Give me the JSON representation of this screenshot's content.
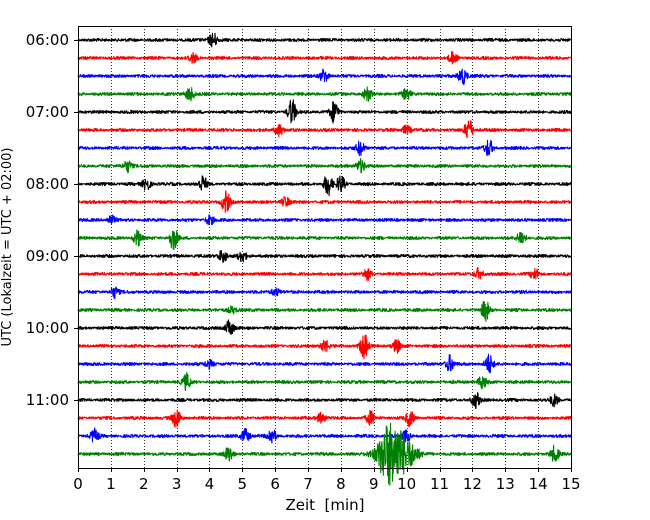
{
  "chart_data": {
    "type": "line",
    "title": "",
    "xlabel": "Zeit  [min]",
    "ylabel": "UTC (Lokalzeit = UTC + 02:00)",
    "xlim": [
      0,
      15
    ],
    "x_ticks": [
      0,
      1,
      2,
      3,
      4,
      5,
      6,
      7,
      8,
      9,
      10,
      11,
      12,
      13,
      14,
      15
    ],
    "x_tick_labels": [
      "0",
      "1",
      "2",
      "3",
      "4",
      "5",
      "6",
      "7",
      "8",
      "9",
      "10",
      "11",
      "12",
      "13",
      "14",
      "15"
    ],
    "y_tick_labels": [
      "06:00",
      "07:00",
      "08:00",
      "09:00",
      "10:00",
      "11:00"
    ],
    "y_tick_trace_index": [
      0,
      4,
      8,
      12,
      16,
      20
    ],
    "grid": "vertical dotted",
    "trace_interval_min": 15,
    "trace_colors": [
      "#000000",
      "#ff0000",
      "#0000ff",
      "#008000"
    ],
    "traces": [
      {
        "start": "06:00",
        "color": "#000000",
        "events": [
          [
            4.1,
            1.0
          ]
        ]
      },
      {
        "start": "06:15",
        "color": "#ff0000",
        "events": [
          [
            3.5,
            0.5
          ],
          [
            11.4,
            0.5
          ]
        ]
      },
      {
        "start": "06:30",
        "color": "#0000ff",
        "events": [
          [
            7.5,
            0.8
          ],
          [
            11.7,
            1.2
          ]
        ]
      },
      {
        "start": "06:45",
        "color": "#008000",
        "events": [
          [
            3.4,
            1.0
          ],
          [
            8.8,
            0.6
          ],
          [
            10.0,
            0.5
          ]
        ]
      },
      {
        "start": "07:00",
        "color": "#000000",
        "events": [
          [
            6.5,
            1.2
          ],
          [
            7.8,
            1.0
          ]
        ]
      },
      {
        "start": "07:15",
        "color": "#ff0000",
        "events": [
          [
            6.1,
            0.7
          ],
          [
            11.9,
            1.3
          ],
          [
            10.0,
            0.6
          ]
        ]
      },
      {
        "start": "07:30",
        "color": "#0000ff",
        "events": [
          [
            8.6,
            0.8
          ],
          [
            12.5,
            0.8
          ]
        ]
      },
      {
        "start": "07:45",
        "color": "#008000",
        "events": [
          [
            1.5,
            0.8
          ],
          [
            8.6,
            0.9
          ]
        ]
      },
      {
        "start": "08:00",
        "color": "#000000",
        "events": [
          [
            2.1,
            0.7
          ],
          [
            3.8,
            0.7
          ],
          [
            7.6,
            1.1
          ],
          [
            8.0,
            0.8
          ]
        ]
      },
      {
        "start": "08:15",
        "color": "#ff0000",
        "events": [
          [
            4.5,
            1.0
          ],
          [
            6.3,
            0.5
          ]
        ]
      },
      {
        "start": "08:30",
        "color": "#0000ff",
        "events": [
          [
            1.0,
            0.5
          ],
          [
            4.0,
            0.5
          ]
        ]
      },
      {
        "start": "08:45",
        "color": "#008000",
        "events": [
          [
            1.8,
            0.8
          ],
          [
            2.9,
            1.1
          ],
          [
            13.5,
            0.8
          ]
        ]
      },
      {
        "start": "09:00",
        "color": "#000000",
        "events": [
          [
            4.4,
            0.9
          ],
          [
            5.0,
            0.5
          ]
        ]
      },
      {
        "start": "09:15",
        "color": "#ff0000",
        "events": [
          [
            8.8,
            0.5
          ],
          [
            12.2,
            0.7
          ],
          [
            13.9,
            0.5
          ]
        ]
      },
      {
        "start": "09:30",
        "color": "#0000ff",
        "events": [
          [
            1.1,
            0.6
          ],
          [
            6.0,
            0.5
          ]
        ]
      },
      {
        "start": "09:45",
        "color": "#008000",
        "events": [
          [
            4.7,
            0.5
          ],
          [
            12.4,
            0.9
          ]
        ]
      },
      {
        "start": "10:00",
        "color": "#000000",
        "events": [
          [
            4.6,
            1.0
          ]
        ]
      },
      {
        "start": "10:15",
        "color": "#ff0000",
        "events": [
          [
            7.5,
            0.7
          ],
          [
            8.7,
            1.2
          ],
          [
            9.7,
            0.6
          ]
        ]
      },
      {
        "start": "10:30",
        "color": "#0000ff",
        "events": [
          [
            4.0,
            0.6
          ],
          [
            11.3,
            0.9
          ],
          [
            12.5,
            0.9
          ]
        ]
      },
      {
        "start": "10:45",
        "color": "#008000",
        "events": [
          [
            3.3,
            0.7
          ],
          [
            12.3,
            0.6
          ]
        ]
      },
      {
        "start": "11:00",
        "color": "#000000",
        "events": [
          [
            12.1,
            0.7
          ],
          [
            14.5,
            0.6
          ]
        ]
      },
      {
        "start": "11:15",
        "color": "#ff0000",
        "events": [
          [
            3.0,
            0.9
          ],
          [
            7.4,
            0.7
          ],
          [
            8.9,
            0.6
          ],
          [
            10.1,
            0.7
          ]
        ]
      },
      {
        "start": "11:30",
        "color": "#0000ff",
        "events": [
          [
            0.5,
            0.6
          ],
          [
            5.1,
            0.9
          ],
          [
            5.9,
            0.8
          ],
          [
            10.0,
            0.6
          ]
        ]
      },
      {
        "start": "11:45",
        "color": "#008000",
        "events": [
          [
            4.6,
            0.7
          ],
          [
            9.4,
            2.5
          ],
          [
            9.9,
            2.2
          ],
          [
            14.5,
            0.7
          ]
        ]
      }
    ]
  }
}
